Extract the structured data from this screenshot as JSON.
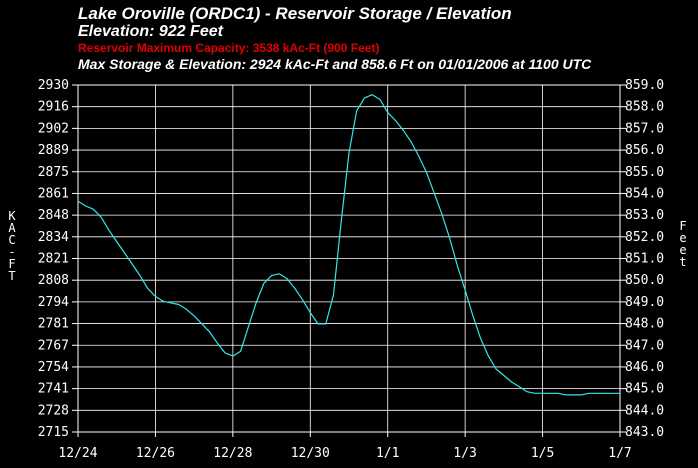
{
  "header": {
    "title": "Lake Oroville (ORDC1) - Reservoir Storage / Elevation",
    "elevation": "Elevation:  922 Feet",
    "max_capacity": "Reservoir Maximum Capacity: 3538 kAc-Ft (900 Feet)",
    "max_storage": "Max Storage & Elevation:  2924 kAc-Ft and 858.6 Ft on 01/01/2006 at 1100 UTC"
  },
  "colors": {
    "background": "#000000",
    "line": "#33e8e8",
    "grid": "#ffffff",
    "highlight": "#e00000"
  },
  "chart_data": {
    "type": "line",
    "title": "Lake Oroville (ORDC1) - Reservoir Storage / Elevation",
    "ylabel": "KAC-FT",
    "y2label": "Feet",
    "xlim": [
      "12/24",
      "1/7"
    ],
    "ylim": [
      2715,
      2930
    ],
    "y2lim": [
      843.0,
      859.0
    ],
    "grid": true,
    "x_ticks": [
      "12/24",
      "12/26",
      "12/28",
      "12/30",
      "1/1",
      "1/3",
      "1/5",
      "1/7"
    ],
    "y_ticks": [
      "2930",
      "2916",
      "2902",
      "2889",
      "2875",
      "2861",
      "2848",
      "2834",
      "2821",
      "2808",
      "2794",
      "2781",
      "2767",
      "2754",
      "2741",
      "2728",
      "2715"
    ],
    "y2_ticks": [
      "859.0",
      "858.0",
      "857.0",
      "856.0",
      "855.0",
      "854.0",
      "853.0",
      "852.0",
      "851.0",
      "850.0",
      "849.0",
      "848.0",
      "847.0",
      "846.0",
      "845.0",
      "844.0",
      "843.0"
    ],
    "series": [
      {
        "x": [
          0.0,
          0.2,
          0.4,
          0.6,
          0.8,
          1.0,
          1.2,
          1.4,
          1.6,
          1.8,
          2.0,
          2.2,
          2.4,
          2.6,
          2.8,
          3.0,
          3.2,
          3.4,
          3.6,
          3.8,
          4.0,
          4.2,
          4.4,
          4.6,
          4.8,
          5.0,
          5.2,
          5.4,
          5.6,
          5.8,
          6.0,
          6.2,
          6.4,
          6.6,
          6.8,
          7.0,
          7.2,
          7.4,
          7.6,
          7.8,
          8.0,
          8.2,
          8.4,
          8.6,
          8.8,
          9.0,
          9.2,
          9.4,
          9.6,
          9.8,
          10.0,
          10.2,
          10.4,
          10.6,
          10.8,
          11.0,
          11.2,
          11.4,
          11.6,
          11.8,
          12.0,
          12.2,
          12.4,
          12.6,
          12.8,
          13.0,
          13.2,
          13.4,
          13.6,
          13.8,
          14.0
        ],
        "y": [
          2858,
          2855,
          2853,
          2848,
          2840,
          2833,
          2826,
          2819,
          2812,
          2804,
          2799,
          2796,
          2795,
          2794,
          2791,
          2787,
          2782,
          2777,
          2770,
          2764,
          2762,
          2765,
          2780,
          2795,
          2807,
          2812,
          2813,
          2810,
          2804,
          2797,
          2789,
          2782,
          2782,
          2800,
          2846,
          2888,
          2914,
          2922,
          2924,
          2921,
          2913,
          2908,
          2902,
          2895,
          2886,
          2876,
          2863,
          2850,
          2835,
          2818,
          2803,
          2787,
          2773,
          2762,
          2754,
          2750,
          2746,
          2743,
          2740,
          2739,
          2739,
          2739,
          2739,
          2738,
          2738,
          2738,
          2739,
          2739,
          2739,
          2739,
          2739
        ]
      }
    ]
  }
}
